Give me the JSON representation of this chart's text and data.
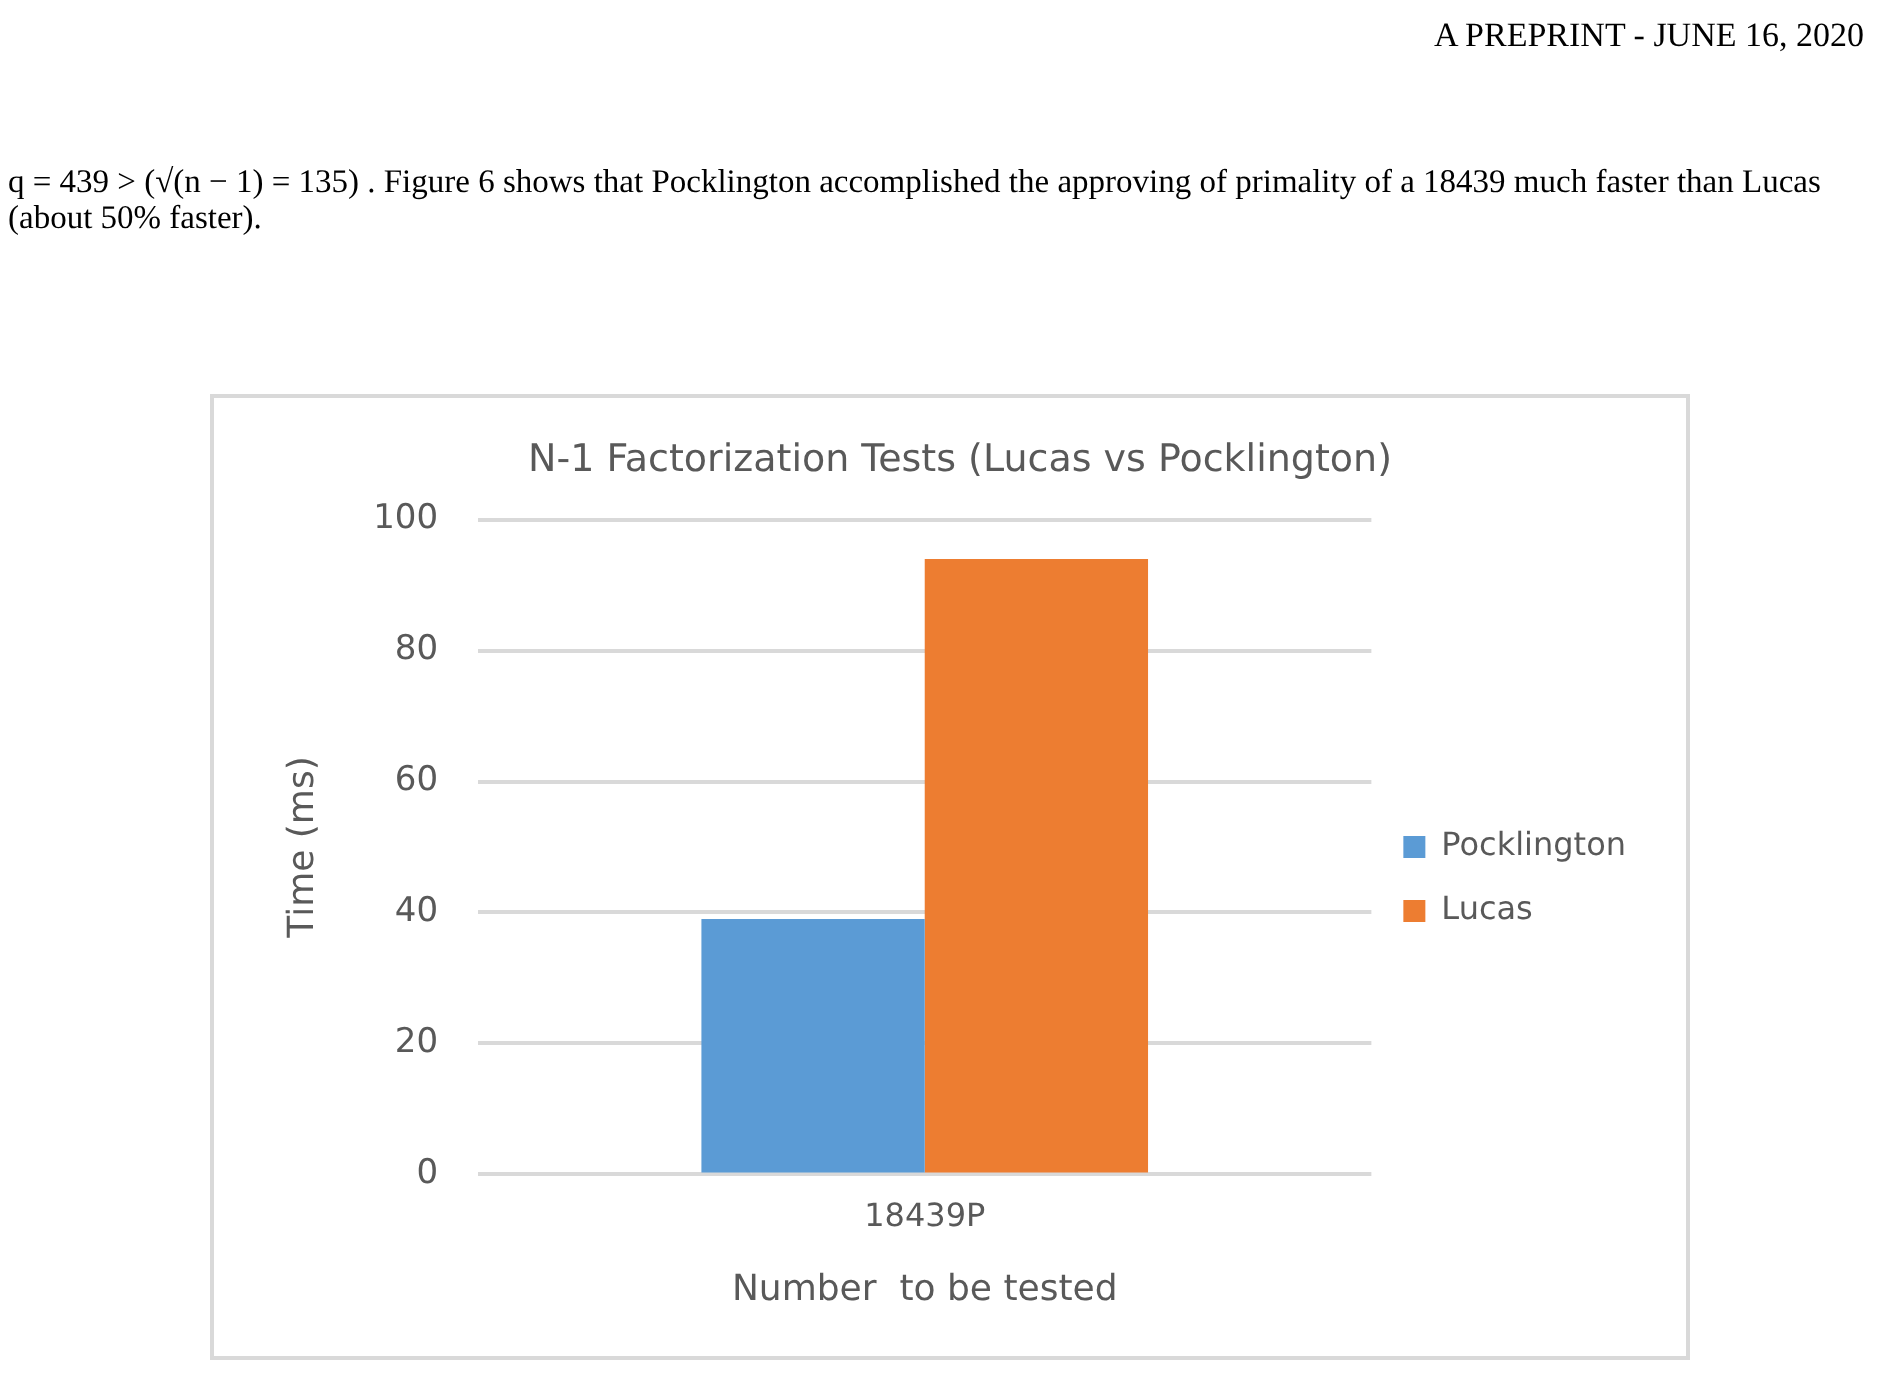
{
  "chart_data": {
    "type": "bar",
    "title": "N-1 Factorization Tests (Lucas vs Pocklington)",
    "xlabel": "Number  to be tested",
    "ylabel": "Time (ms)",
    "categories": [
      "18439P"
    ],
    "series": [
      {
        "name": "Pocklington",
        "color": "#5b9bd5",
        "values": [
          39
        ]
      },
      {
        "name": "Lucas",
        "color": "#ed7d31",
        "values": [
          94
        ]
      }
    ],
    "ylim": [
      0,
      100
    ],
    "yticks": [
      0,
      20,
      40,
      60,
      80,
      100
    ],
    "grid": "y",
    "legend": "right",
    "annotations": [
      "A PREPRINT - JUNE 16, 2020",
      "q = 439 > (√(n − 1) = 135) . Figure 6 shows that Pocklington accomplished the approving of primality of a 18439 much faster than Lucas (about 50% faster)."
    ]
  }
}
